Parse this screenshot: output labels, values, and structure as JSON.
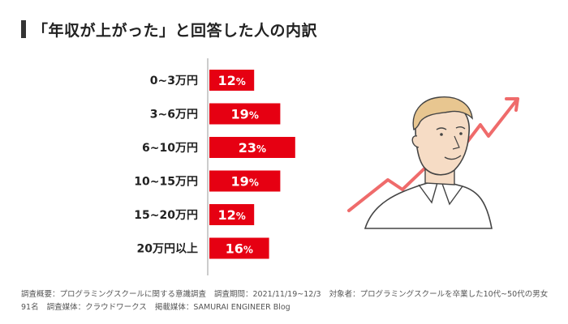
{
  "title": "「年収が上がった」と回答した人の内訳",
  "colors": {
    "bar": "#e60012",
    "accent_arrow": "#ef6b6b",
    "title_bar": "#333333",
    "axis": "#bbbbbb"
  },
  "chart_data": {
    "type": "bar",
    "orientation": "horizontal",
    "categories": [
      "0~3万円",
      "3~6万円",
      "6~10万円",
      "10~15万円",
      "15~20万円",
      "20万円以上"
    ],
    "values": [
      12,
      19,
      23,
      19,
      12,
      16
    ],
    "unit": "%",
    "xlim": [
      0,
      25
    ]
  },
  "footnote": {
    "survey_summary": "調査概要：プログラミングスクールに関する意識調査",
    "survey_period": "調査期間：2021/11/19~12/3",
    "target": "対象者：プログラミングスクールを卒業した10代~50代の男女91名",
    "survey_media": "調査媒体：クラウドワークス",
    "publication": "掲載媒体：SAMURAI ENGINEER Blog"
  }
}
